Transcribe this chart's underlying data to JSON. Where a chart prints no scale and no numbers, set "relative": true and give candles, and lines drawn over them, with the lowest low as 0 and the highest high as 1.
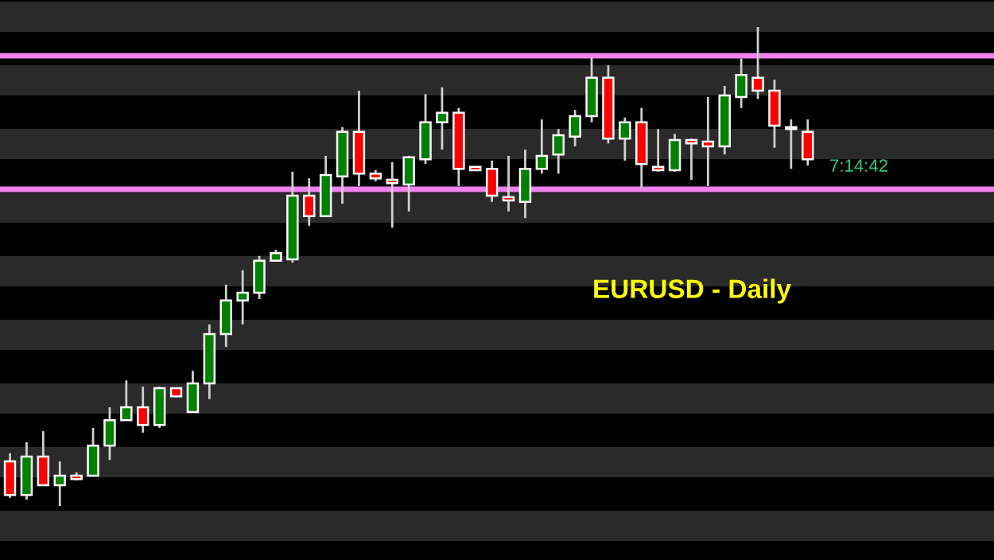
{
  "chart_data": {
    "type": "candlestick",
    "title": "EURUSD - Daily",
    "relative": true,
    "categories": [
      null,
      null,
      null,
      null,
      null,
      null,
      null,
      null,
      null,
      null,
      null,
      null,
      null,
      null,
      null,
      null,
      null,
      null,
      null,
      null,
      null,
      null,
      null,
      null,
      null,
      null,
      null,
      null,
      null,
      null,
      null,
      null,
      null,
      null,
      null,
      null,
      null,
      null,
      null,
      null,
      null,
      null,
      null,
      null,
      null,
      null,
      null,
      null,
      null
    ],
    "ohlc": [
      [
        0.093,
        0.11,
        0.017,
        0.023
      ],
      [
        0.023,
        0.133,
        0.013,
        0.103
      ],
      [
        0.103,
        0.156,
        0.043,
        0.043
      ],
      [
        0.043,
        0.093,
        0,
        0.063
      ],
      [
        0.063,
        0.07,
        0.053,
        0.056
      ],
      [
        0.063,
        0.163,
        0.063,
        0.126
      ],
      [
        0.126,
        0.206,
        0.096,
        0.179
      ],
      [
        0.179,
        0.262,
        0.179,
        0.206
      ],
      [
        0.206,
        0.249,
        0.153,
        0.169
      ],
      [
        0.169,
        0.249,
        0.163,
        0.246
      ],
      [
        0.246,
        0.246,
        0.226,
        0.229
      ],
      [
        0.196,
        0.282,
        0.196,
        0.256
      ],
      [
        0.256,
        0.379,
        0.223,
        0.359
      ],
      [
        0.359,
        0.462,
        0.332,
        0.429
      ],
      [
        0.429,
        0.492,
        0.379,
        0.445
      ],
      [
        0.445,
        0.522,
        0.432,
        0.512
      ],
      [
        0.512,
        0.535,
        0.512,
        0.528
      ],
      [
        0.515,
        0.698,
        0.508,
        0.648
      ],
      [
        0.648,
        0.684,
        0.585,
        0.605
      ],
      [
        0.605,
        0.731,
        0.605,
        0.691
      ],
      [
        0.688,
        0.791,
        0.631,
        0.781
      ],
      [
        0.781,
        0.867,
        0.668,
        0.694
      ],
      [
        0.694,
        0.701,
        0.678,
        0.684
      ],
      [
        0.681,
        0.718,
        0.581,
        0.674
      ],
      [
        0.671,
        0.731,
        0.615,
        0.728
      ],
      [
        0.724,
        0.86,
        0.714,
        0.801
      ],
      [
        0.801,
        0.874,
        0.744,
        0.821
      ],
      [
        0.821,
        0.831,
        0.668,
        0.704
      ],
      [
        0.708,
        0.708,
        0.701,
        0.701
      ],
      [
        0.704,
        0.721,
        0.635,
        0.648
      ],
      [
        0.645,
        0.731,
        0.615,
        0.638
      ],
      [
        0.635,
        0.744,
        0.601,
        0.704
      ],
      [
        0.704,
        0.807,
        0.694,
        0.731
      ],
      [
        0.734,
        0.787,
        0.694,
        0.774
      ],
      [
        0.771,
        0.827,
        0.751,
        0.814
      ],
      [
        0.814,
        0.937,
        0.801,
        0.894
      ],
      [
        0.894,
        0.92,
        0.757,
        0.767
      ],
      [
        0.767,
        0.811,
        0.721,
        0.801
      ],
      [
        0.801,
        0.831,
        0.664,
        0.714
      ],
      [
        0.708,
        0.787,
        0.698,
        0.701
      ],
      [
        0.701,
        0.777,
        0.698,
        0.764
      ],
      [
        0.764,
        0.767,
        0.681,
        0.757
      ],
      [
        0.761,
        0.854,
        0.668,
        0.751
      ],
      [
        0.751,
        0.877,
        0.734,
        0.857
      ],
      [
        0.854,
        0.934,
        0.831,
        0.9
      ],
      [
        0.894,
        1,
        0.85,
        0.867
      ],
      [
        0.867,
        0.89,
        0.748,
        0.794
      ],
      [
        0.787,
        0.807,
        0.704,
        0.787
      ],
      [
        0.781,
        0.807,
        0.711,
        0.724
      ]
    ],
    "colors": [
      "#ff0000",
      "#008000",
      "#ff0000",
      "#008000",
      "#ff0000",
      "#008000",
      "#008000",
      "#008000",
      "#ff0000",
      "#008000",
      "#ff0000",
      "#008000",
      "#008000",
      "#008000",
      "#008000",
      "#008000",
      "#008000",
      "#008000",
      "#ff0000",
      "#008000",
      "#008000",
      "#ff0000",
      "#ff0000",
      "#ff0000",
      "#008000",
      "#008000",
      "#008000",
      "#ff0000",
      "#ff0000",
      "#ff0000",
      "#ff0000",
      "#008000",
      "#008000",
      "#008000",
      "#008000",
      "#008000",
      "#ff0000",
      "#008000",
      "#ff0000",
      "#ff0000",
      "#008000",
      "#ff0000",
      "#ff0000",
      "#008000",
      "#008000",
      "#ff0000",
      "#ff0000",
      "#ff0000",
      "#ff0000"
    ],
    "ref_lines": [
      {
        "axis": "y",
        "value": 0.94,
        "color": "#ee82ee"
      },
      {
        "axis": "y",
        "value": 0.661,
        "color": "#ee82ee"
      }
    ],
    "annotations": [
      "7:14:42"
    ],
    "grid": false
  }
}
